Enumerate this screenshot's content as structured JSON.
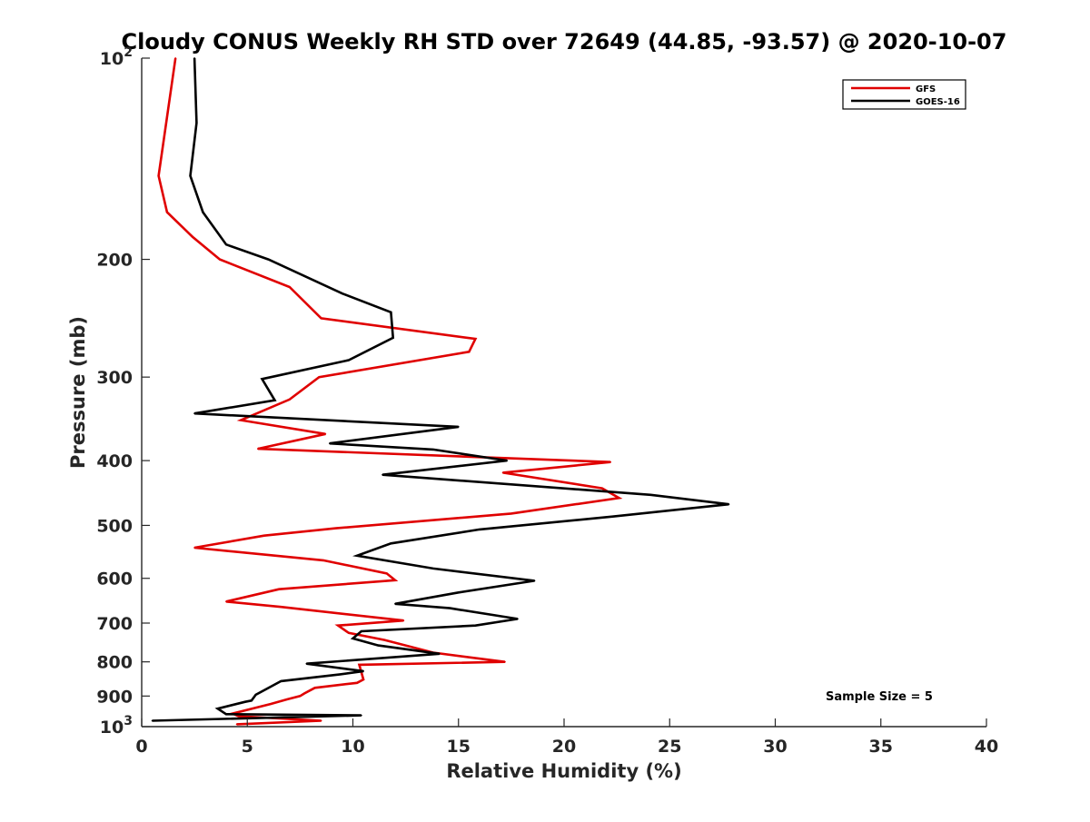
{
  "chart_data": {
    "type": "line",
    "title": "Cloudy CONUS Weekly RH STD over 72649 (44.85, -93.57) @ 2020-10-07",
    "xlabel": "Relative Humidity (%)",
    "ylabel": "Pressure (mb)",
    "xlim": [
      0,
      40
    ],
    "ylim": [
      100,
      1000
    ],
    "yscale": "log",
    "yreversed": true,
    "xticks": [
      "0",
      "5",
      "10",
      "15",
      "20",
      "25",
      "30",
      "35",
      "40"
    ],
    "xtick_values": [
      0,
      5,
      10,
      15,
      20,
      25,
      30,
      35,
      40
    ],
    "yticks": [
      {
        "value": 100,
        "base": "10",
        "exp": "2"
      },
      {
        "value": 200,
        "base": "200",
        "exp": ""
      },
      {
        "value": 300,
        "base": "300",
        "exp": ""
      },
      {
        "value": 400,
        "base": "400",
        "exp": ""
      },
      {
        "value": 500,
        "base": "500",
        "exp": ""
      },
      {
        "value": 600,
        "base": "600",
        "exp": ""
      },
      {
        "value": 700,
        "base": "700",
        "exp": ""
      },
      {
        "value": 800,
        "base": "800",
        "exp": ""
      },
      {
        "value": 900,
        "base": "900",
        "exp": ""
      },
      {
        "value": 1000,
        "base": "10",
        "exp": "3"
      }
    ],
    "grid": false,
    "legend_position": "top-right",
    "annotation": "Sample Size = 5",
    "series": [
      {
        "name": "GFS",
        "color": "#e00000",
        "points": [
          [
            1.6,
            100
          ],
          [
            0.8,
            150
          ],
          [
            1.2,
            170
          ],
          [
            2.4,
            185
          ],
          [
            3.7,
            200
          ],
          [
            7.0,
            220
          ],
          [
            8.5,
            245
          ],
          [
            15.8,
            263
          ],
          [
            15.5,
            275
          ],
          [
            8.4,
            300
          ],
          [
            7.0,
            324
          ],
          [
            4.7,
            348
          ],
          [
            8.7,
            365
          ],
          [
            5.5,
            384
          ],
          [
            22.2,
            402
          ],
          [
            17.1,
            417
          ],
          [
            21.8,
            440
          ],
          [
            22.6,
            455
          ],
          [
            17.5,
            480
          ],
          [
            9.2,
            505
          ],
          [
            5.8,
            518
          ],
          [
            2.5,
            540
          ],
          [
            8.6,
            564
          ],
          [
            11.6,
            590
          ],
          [
            12.0,
            604
          ],
          [
            6.5,
            623
          ],
          [
            4.0,
            650
          ],
          [
            6.6,
            662
          ],
          [
            12.4,
            694
          ],
          [
            9.3,
            706
          ],
          [
            9.8,
            724
          ],
          [
            11.5,
            742
          ],
          [
            13.8,
            775
          ],
          [
            17.2,
            800
          ],
          [
            10.3,
            808
          ],
          [
            10.5,
            850
          ],
          [
            10.2,
            860
          ],
          [
            8.2,
            875
          ],
          [
            7.7,
            892
          ],
          [
            7.5,
            900
          ],
          [
            6.9,
            910
          ],
          [
            6.1,
            925
          ],
          [
            4.3,
            956
          ],
          [
            4.6,
            965
          ],
          [
            8.5,
            980
          ],
          [
            4.5,
            992
          ]
        ]
      },
      {
        "name": "GOES-16",
        "color": "#000000",
        "points": [
          [
            2.5,
            100
          ],
          [
            2.6,
            125
          ],
          [
            2.3,
            150
          ],
          [
            2.9,
            170
          ],
          [
            4.0,
            190
          ],
          [
            6.0,
            200
          ],
          [
            9.5,
            225
          ],
          [
            11.8,
            240
          ],
          [
            11.9,
            262
          ],
          [
            9.8,
            283
          ],
          [
            5.7,
            302
          ],
          [
            6.3,
            325
          ],
          [
            2.5,
            340
          ],
          [
            15.0,
            356
          ],
          [
            8.9,
            377
          ],
          [
            13.8,
            385
          ],
          [
            17.3,
            400
          ],
          [
            11.4,
            420
          ],
          [
            24.1,
            450
          ],
          [
            27.8,
            465
          ],
          [
            22.3,
            485
          ],
          [
            16.0,
            507
          ],
          [
            11.8,
            532
          ],
          [
            10.2,
            555
          ],
          [
            13.8,
            580
          ],
          [
            18.6,
            605
          ],
          [
            15.0,
            630
          ],
          [
            12.0,
            655
          ],
          [
            14.6,
            665
          ],
          [
            17.8,
            690
          ],
          [
            15.8,
            706
          ],
          [
            10.4,
            720
          ],
          [
            10.0,
            738
          ],
          [
            11.2,
            756
          ],
          [
            14.1,
            778
          ],
          [
            7.8,
            805
          ],
          [
            10.5,
            826
          ],
          [
            9.4,
            835
          ],
          [
            6.6,
            855
          ],
          [
            5.4,
            896
          ],
          [
            5.2,
            914
          ],
          [
            4.9,
            918
          ],
          [
            3.6,
            940
          ],
          [
            4.0,
            958
          ],
          [
            10.4,
            962
          ],
          [
            0.5,
            980
          ]
        ]
      }
    ]
  }
}
